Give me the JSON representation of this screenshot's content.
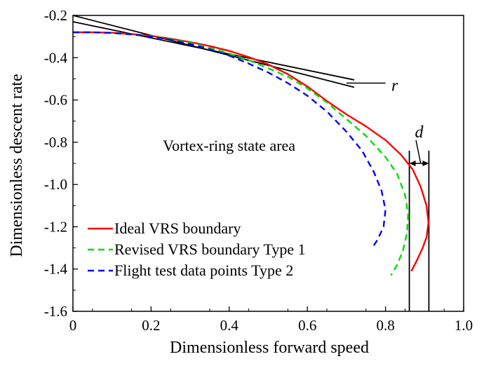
{
  "chart_data": {
    "type": "line",
    "title": "",
    "xlabel": "Dimensionless forward speed",
    "ylabel": "Dimensionless descent rate",
    "xlim": [
      0,
      1.0
    ],
    "ylim": [
      -1.6,
      -0.2
    ],
    "xticks": [
      "0",
      "0.2",
      "0.4",
      "0.6",
      "0.8",
      "1.0"
    ],
    "yticks": [
      "-0.2",
      "-0.4",
      "-0.6",
      "-0.8",
      "-1.0",
      "-1.2",
      "-1.4",
      "-1.6"
    ],
    "grid": false,
    "legend_position": "bottom-left",
    "series": [
      {
        "name": "Ideal VRS boundary",
        "color": "#ff0000",
        "style": "solid",
        "x": [
          0.0,
          0.05,
          0.1,
          0.15,
          0.2,
          0.25,
          0.3,
          0.35,
          0.4,
          0.45,
          0.5,
          0.55,
          0.6,
          0.65,
          0.7,
          0.75,
          0.8,
          0.84,
          0.87,
          0.89,
          0.905,
          0.91,
          0.905,
          0.895,
          0.88,
          0.866
        ],
        "y": [
          -0.28,
          -0.28,
          -0.282,
          -0.288,
          -0.297,
          -0.31,
          -0.326,
          -0.345,
          -0.368,
          -0.397,
          -0.432,
          -0.478,
          -0.536,
          -0.605,
          -0.668,
          -0.725,
          -0.79,
          -0.86,
          -0.93,
          -1.01,
          -1.1,
          -1.18,
          -1.25,
          -1.3,
          -1.36,
          -1.41
        ]
      },
      {
        "name": "Revised VRS boundary Type 1",
        "color": "#00dd00",
        "style": "dashed",
        "x": [
          0.0,
          0.05,
          0.1,
          0.15,
          0.2,
          0.25,
          0.3,
          0.35,
          0.4,
          0.45,
          0.5,
          0.55,
          0.6,
          0.65,
          0.7,
          0.75,
          0.8,
          0.83,
          0.85,
          0.858,
          0.855,
          0.845,
          0.83,
          0.814
        ],
        "y": [
          -0.28,
          -0.28,
          -0.283,
          -0.289,
          -0.298,
          -0.312,
          -0.33,
          -0.352,
          -0.38,
          -0.412,
          -0.45,
          -0.49,
          -0.545,
          -0.612,
          -0.69,
          -0.77,
          -0.87,
          -0.95,
          -1.05,
          -1.14,
          -1.23,
          -1.31,
          -1.38,
          -1.43
        ]
      },
      {
        "name": "Flight test data points Type 2",
        "color": "#0000ff",
        "style": "dashed",
        "x": [
          0.0,
          0.05,
          0.1,
          0.15,
          0.2,
          0.25,
          0.3,
          0.35,
          0.4,
          0.45,
          0.5,
          0.55,
          0.6,
          0.65,
          0.7,
          0.74,
          0.77,
          0.79,
          0.8,
          0.795,
          0.78,
          0.766
        ],
        "y": [
          -0.28,
          -0.28,
          -0.283,
          -0.29,
          -0.3,
          -0.315,
          -0.335,
          -0.36,
          -0.39,
          -0.428,
          -0.47,
          -0.52,
          -0.58,
          -0.655,
          -0.75,
          -0.84,
          -0.94,
          -1.03,
          -1.12,
          -1.2,
          -1.26,
          -1.3
        ]
      }
    ],
    "tangent_lines": [
      {
        "x": [
          0.0,
          0.72
        ],
        "y": [
          -0.2,
          -0.54
        ]
      },
      {
        "x": [
          0.0,
          0.72
        ],
        "y": [
          -0.23,
          -0.505
        ]
      }
    ],
    "vertical_lines": [
      0.861,
      0.911
    ],
    "annotations": {
      "area_label": "Vortex-ring state area",
      "area_label_pos": {
        "x": 0.23,
        "y": -0.84
      },
      "r_label": "r",
      "r_label_pos": {
        "x": 0.815,
        "y": -0.53
      },
      "r_pointer": {
        "x": [
          0.7,
          0.8
        ],
        "y": [
          -0.52,
          -0.52
        ]
      },
      "d_label": "d",
      "d_label_pos": {
        "x": 0.886,
        "y": -0.75
      },
      "d_pointer": {
        "x": [
          0.878,
          0.89
        ],
        "y": [
          -0.79,
          -0.9
        ]
      },
      "d_arrow_y": -0.9
    }
  }
}
